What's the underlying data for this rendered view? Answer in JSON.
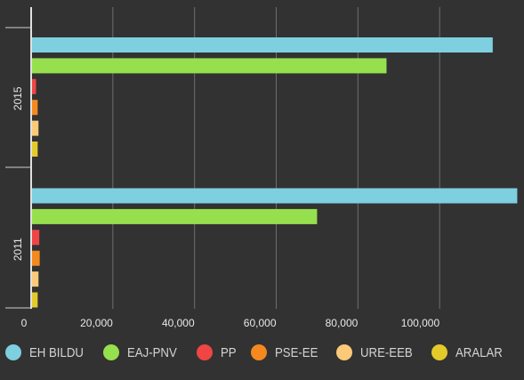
{
  "chart_data": {
    "type": "bar",
    "orientation": "horizontal",
    "categories": [
      "2015",
      "2011"
    ],
    "series": [
      {
        "name": "EH BILDU",
        "color": "#7ecfe0",
        "values": [
          113000,
          119000
        ]
      },
      {
        "name": "EAJ-PNV",
        "color": "#96e04e",
        "values": [
          87000,
          70000
        ]
      },
      {
        "name": "PP",
        "color": "#f04545",
        "values": [
          1200,
          2000
        ]
      },
      {
        "name": "PSE-EE",
        "color": "#f5891f",
        "values": [
          1600,
          2100
        ]
      },
      {
        "name": "URE-EEB",
        "color": "#fcc978",
        "values": [
          1800,
          1800
        ]
      },
      {
        "name": "ARALAR",
        "color": "#e3c92a",
        "values": [
          1600,
          1600
        ]
      }
    ],
    "x_ticks": [
      0,
      20000,
      40000,
      60000,
      80000,
      100000
    ],
    "x_tick_labels": [
      "0",
      "20,000",
      "40,000",
      "60,000",
      "80,000",
      "100,000"
    ],
    "xlim": [
      0,
      120000
    ],
    "grid": true,
    "legend_position": "bottom"
  }
}
